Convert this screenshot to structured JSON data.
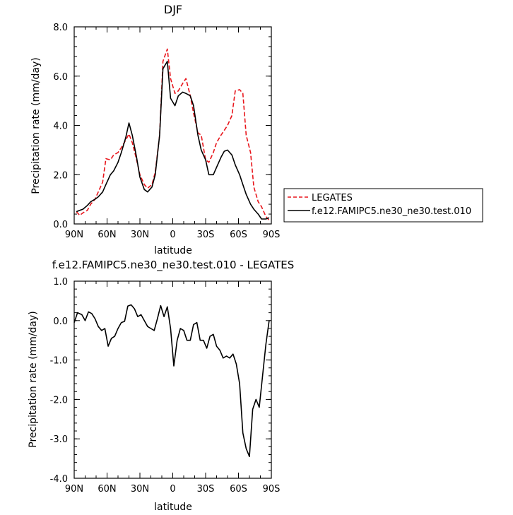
{
  "colors": {
    "legates": "#e8151b",
    "model": "#000000",
    "axis": "#000000",
    "background": "#ffffff"
  },
  "chart_data": [
    {
      "type": "line",
      "title": "DJF",
      "xlabel": "latitude",
      "ylabel": "Precipitation rate (mm/day)",
      "xlim": [
        90,
        -90
      ],
      "ylim": [
        0,
        8
      ],
      "xticks": [
        90,
        60,
        30,
        0,
        -30,
        -60,
        -90
      ],
      "xtick_labels": [
        "90N",
        "60N",
        "30N",
        "0",
        "30S",
        "60S",
        "90S"
      ],
      "yticks": [
        0,
        2,
        4,
        6,
        8
      ],
      "ytick_labels": [
        "0.0",
        "2.0",
        "4.0",
        "6.0",
        "8.0"
      ],
      "grid": false,
      "legend_position": "right, outside plot",
      "series": [
        {
          "name": "LEGATES",
          "style": "dashed",
          "color": "#e8151b",
          "x": [
            88,
            85,
            82,
            78,
            75,
            71,
            68,
            64,
            61,
            57,
            54,
            50,
            47,
            43,
            40,
            37,
            33,
            30,
            26,
            23,
            19,
            16,
            12,
            9,
            5,
            2,
            -2,
            -5,
            -9,
            -12,
            -16,
            -19,
            -23,
            -26,
            -30,
            -33,
            -37,
            -40,
            -44,
            -47,
            -50,
            -54,
            -57,
            -61,
            -64,
            -67,
            -71,
            -74,
            -78,
            -81,
            -85,
            -88
          ],
          "y": [
            0.5,
            0.35,
            0.45,
            0.55,
            0.8,
            1.0,
            1.3,
            1.7,
            2.65,
            2.6,
            2.8,
            2.9,
            3.1,
            3.4,
            3.65,
            3.3,
            2.6,
            2.0,
            1.6,
            1.45,
            1.6,
            2.1,
            3.6,
            6.6,
            7.1,
            5.9,
            5.3,
            5.4,
            5.7,
            5.9,
            5.2,
            4.5,
            3.7,
            3.6,
            2.6,
            2.5,
            2.9,
            3.3,
            3.6,
            3.8,
            4.0,
            4.4,
            5.4,
            5.45,
            5.3,
            3.6,
            2.9,
            1.5,
            0.9,
            0.7,
            0.3,
            0.15
          ]
        },
        {
          "name": "f.e12.FAMIPC5.ne30_ne30.test.010",
          "style": "solid",
          "color": "#000000",
          "x": [
            88,
            85,
            82,
            78,
            75,
            71,
            68,
            64,
            61,
            57,
            54,
            50,
            47,
            43,
            40,
            37,
            33,
            30,
            26,
            23,
            19,
            16,
            12,
            9,
            5,
            2,
            -2,
            -5,
            -9,
            -12,
            -16,
            -19,
            -23,
            -26,
            -30,
            -33,
            -37,
            -40,
            -44,
            -47,
            -50,
            -54,
            -57,
            -61,
            -64,
            -67,
            -71,
            -74,
            -78,
            -81,
            -85,
            -88
          ],
          "y": [
            0.5,
            0.55,
            0.6,
            0.75,
            0.9,
            1.0,
            1.1,
            1.3,
            1.6,
            2.0,
            2.15,
            2.5,
            2.9,
            3.5,
            4.1,
            3.6,
            2.7,
            1.9,
            1.4,
            1.3,
            1.5,
            2.0,
            3.6,
            6.3,
            6.6,
            5.1,
            4.8,
            5.2,
            5.35,
            5.3,
            5.2,
            4.8,
            3.6,
            3.0,
            2.6,
            2.0,
            2.0,
            2.3,
            2.7,
            2.95,
            3.0,
            2.8,
            2.4,
            2.0,
            1.6,
            1.2,
            0.8,
            0.6,
            0.4,
            0.2,
            0.2,
            0.25
          ]
        }
      ]
    },
    {
      "type": "line",
      "title": "f.e12.FAMIPC5.ne30_ne30.test.010 - LEGATES",
      "xlabel": "latitude",
      "ylabel": "Precipitation rate (mm/day)",
      "xlim": [
        90,
        -90
      ],
      "ylim": [
        -4,
        1
      ],
      "xticks": [
        90,
        60,
        30,
        0,
        -30,
        -60,
        -90
      ],
      "xtick_labels": [
        "90N",
        "60N",
        "30N",
        "0",
        "30S",
        "60S",
        "90S"
      ],
      "yticks": [
        -4,
        -3,
        -2,
        -1,
        0,
        1
      ],
      "ytick_labels": [
        "-4.0",
        "-3.0",
        "-2.0",
        "-1.0",
        "0.0",
        "1.0"
      ],
      "grid": false,
      "series": [
        {
          "style": "solid",
          "color": "#000000",
          "x": [
            90,
            87,
            83,
            80,
            77,
            74,
            71,
            68,
            65,
            62,
            59,
            56,
            53,
            50,
            47,
            44,
            41,
            38,
            35,
            32,
            29,
            26,
            23,
            20,
            17,
            14,
            11,
            8,
            5,
            2,
            -1,
            -4,
            -7,
            -10,
            -13,
            -16,
            -19,
            -22,
            -25,
            -28,
            -31,
            -34,
            -37,
            -40,
            -43,
            -46,
            -49,
            -52,
            -55,
            -58,
            -61,
            -64,
            -67,
            -70,
            -73,
            -76,
            -79,
            -82,
            -85,
            -88
          ],
          "y": [
            -0.05,
            0.2,
            0.15,
            0.0,
            0.22,
            0.18,
            0.05,
            -0.15,
            -0.25,
            -0.2,
            -0.65,
            -0.45,
            -0.4,
            -0.2,
            -0.05,
            -0.02,
            0.37,
            0.4,
            0.3,
            0.1,
            0.15,
            0.0,
            -0.15,
            -0.2,
            -0.25,
            0.05,
            0.38,
            0.1,
            0.35,
            -0.2,
            -1.15,
            -0.5,
            -0.2,
            -0.25,
            -0.5,
            -0.5,
            -0.1,
            -0.05,
            -0.5,
            -0.5,
            -0.7,
            -0.4,
            -0.35,
            -0.65,
            -0.75,
            -0.95,
            -0.9,
            -0.95,
            -0.85,
            -1.1,
            -1.6,
            -2.85,
            -3.25,
            -3.45,
            -2.25,
            -2.0,
            -2.2,
            -1.4,
            -0.6,
            0.0
          ]
        }
      ]
    }
  ]
}
